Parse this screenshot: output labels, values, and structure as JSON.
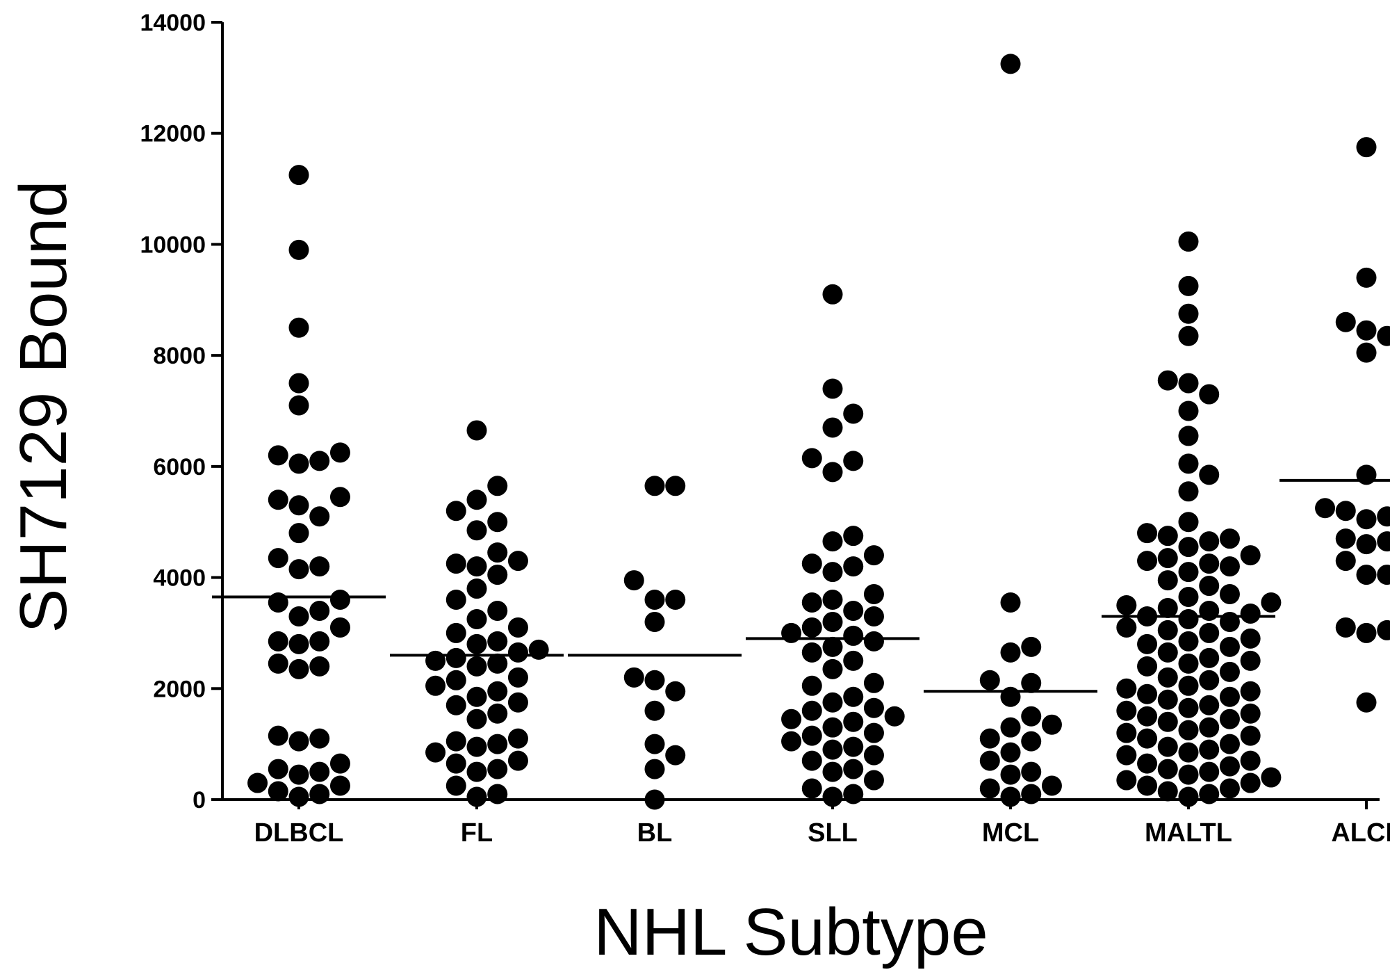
{
  "chart_data": {
    "type": "scatter",
    "title": "",
    "xlabel": "NHL Subtype",
    "ylabel": "SH7129 Bound",
    "ylim": [
      0,
      14000
    ],
    "yticks": [
      0,
      2000,
      4000,
      6000,
      8000,
      10000,
      12000,
      14000
    ],
    "ytick_labels": [
      "0",
      "2000",
      "4000",
      "6000",
      "8000",
      "10000",
      "12000",
      "14000"
    ],
    "categories": [
      "DLBCL",
      "FL",
      "BL",
      "SLL",
      "MCL",
      "MALTL",
      "ALCL"
    ],
    "grid": false,
    "legend": "none",
    "marker_color": "#000000",
    "series": [
      {
        "category": "DLBCL",
        "mean": 3650,
        "values": [
          11250,
          9900,
          8500,
          7500,
          7100,
          6250,
          6100,
          6050,
          6200,
          5450,
          5300,
          5400,
          5100,
          4800,
          4350,
          4200,
          4150,
          3600,
          3550,
          3400,
          3300,
          3100,
          2850,
          2850,
          2800,
          2450,
          2400,
          2350,
          1100,
          1150,
          1050,
          650,
          500,
          550,
          450,
          300,
          250,
          150,
          100,
          50
        ]
      },
      {
        "category": "FL",
        "mean": 2600,
        "values": [
          6650,
          5650,
          5400,
          5200,
          5000,
          4850,
          4450,
          4300,
          4250,
          4200,
          4050,
          3800,
          3600,
          3400,
          3250,
          3100,
          3000,
          2850,
          2800,
          2700,
          2650,
          2550,
          2500,
          2450,
          2400,
          2200,
          2150,
          2050,
          1950,
          1850,
          1750,
          1700,
          1550,
          1450,
          1100,
          1050,
          1000,
          950,
          850,
          700,
          650,
          550,
          500,
          250,
          100,
          50
        ]
      },
      {
        "category": "BL",
        "mean": 2600,
        "values": [
          5650,
          5650,
          3950,
          3600,
          3600,
          3200,
          2200,
          2150,
          1950,
          1600,
          1000,
          800,
          550,
          0
        ]
      },
      {
        "category": "SLL",
        "mean": 2900,
        "values": [
          9100,
          7400,
          6950,
          6700,
          6150,
          6100,
          5900,
          4750,
          4650,
          4400,
          4250,
          4200,
          4100,
          3700,
          3600,
          3550,
          3400,
          3300,
          3200,
          3100,
          3000,
          2950,
          2850,
          2750,
          2650,
          2500,
          2350,
          2100,
          2050,
          1850,
          1750,
          1650,
          1600,
          1500,
          1450,
          1400,
          1300,
          1200,
          1150,
          1050,
          950,
          900,
          800,
          700,
          550,
          500,
          350,
          200,
          100,
          50
        ]
      },
      {
        "category": "MCL",
        "mean": 1950,
        "values": [
          13250,
          3550,
          2750,
          2650,
          2150,
          2100,
          1850,
          1500,
          1350,
          1300,
          1100,
          1050,
          850,
          700,
          500,
          450,
          250,
          200,
          100,
          50
        ]
      },
      {
        "category": "MALTL",
        "mean": 3300,
        "values": [
          10050,
          9250,
          8750,
          8350,
          7550,
          7500,
          7300,
          7000,
          6550,
          6050,
          5850,
          5550,
          5000,
          4800,
          4750,
          4700,
          4650,
          4550,
          4400,
          4350,
          4300,
          4250,
          4200,
          4100,
          3950,
          3850,
          3700,
          3650,
          3550,
          3500,
          3450,
          3400,
          3350,
          3300,
          3250,
          3200,
          3100,
          3050,
          3000,
          2900,
          2850,
          2800,
          2750,
          2650,
          2550,
          2500,
          2450,
          2400,
          2300,
          2200,
          2150,
          2050,
          2000,
          1950,
          1900,
          1850,
          1800,
          1700,
          1650,
          1600,
          1550,
          1500,
          1450,
          1400,
          1300,
          1250,
          1200,
          1150,
          1100,
          1000,
          950,
          900,
          850,
          800,
          700,
          650,
          600,
          550,
          500,
          450,
          400,
          350,
          300,
          250,
          200,
          150,
          100,
          50
        ]
      },
      {
        "category": "ALCL",
        "mean": 5750,
        "values": [
          11750,
          9400,
          8650,
          8600,
          8450,
          8350,
          8050,
          5850,
          5250,
          5200,
          5100,
          5050,
          4950,
          4700,
          4650,
          4600,
          4300,
          4300,
          4050,
          4050,
          3200,
          3100,
          3050,
          3000,
          1750
        ]
      }
    ]
  }
}
